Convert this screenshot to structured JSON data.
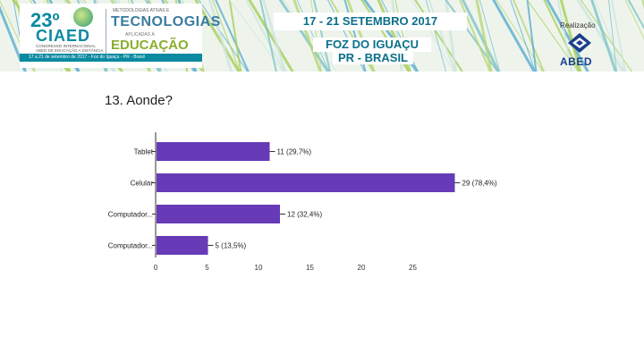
{
  "banner": {
    "logo_number": "23º",
    "logo_acronym": "CIAED",
    "logo_subtitle": "CONGRESSO INTERNACIONAL ABED DE EDUCAÇÃO A DISTÂNCIA",
    "theme_top": "METODOLOGIAS ATIVAS E",
    "theme_main": "TECNOLOGIAS",
    "theme_mid": "APLICADAS À",
    "theme_bottom": "EDUCAÇÃO",
    "date_strip": "17 a 21 de setembro de 2017 - Foz do Iguaçu - PR - Brasil",
    "event_date": "17 - 21 SETEMBRO 2017",
    "city": "FOZ DO IGUAÇU",
    "country": "PR - BRASIL",
    "realizacao": "Realização",
    "org": "ABED",
    "colors": {
      "teal": "#0a8aa0",
      "green": "#8aae2e",
      "abed_blue": "#1a3e8c"
    }
  },
  "question": {
    "title": "13. Aonde?"
  },
  "chart_data": {
    "type": "bar",
    "orientation": "horizontal",
    "categories": [
      "Tablet",
      "Celular",
      "Computador...",
      "Computador..."
    ],
    "values": [
      11,
      29,
      12,
      5
    ],
    "data_labels": [
      "11 (29,7%)",
      "29 (78,4%)",
      "12 (32,4%)",
      "5 (13,5%)"
    ],
    "xlim": [
      0,
      29
    ],
    "xticks": [
      0,
      5,
      10,
      15,
      20,
      25
    ],
    "grid": false,
    "bar_color": "#673ab7"
  }
}
